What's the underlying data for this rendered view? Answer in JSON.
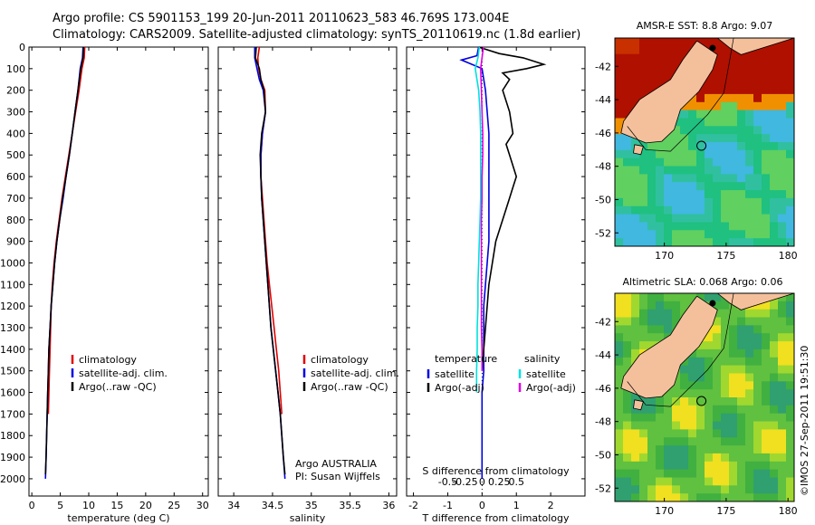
{
  "header": {
    "line1": "Argo profile: CS 5901153_199 20-Jun-2011 20110623_583 46.769S 173.004E",
    "line2": "Climatology: CARS2009. Satellite-adjusted climatology: synTS_20110619.nc (1.8d earlier)"
  },
  "credit": "©IMOS 27-Sep-2011 19:51:30",
  "colors": {
    "climatology": "#e00000",
    "satellite": "#0000e0",
    "argo": "#000000",
    "salinity_satellite": "#00e0e0",
    "salinity_argo": "#e000e0",
    "sst_warm": "#b01000",
    "sst_mid": "#f09000",
    "sst_cool": "#20c080",
    "sla_green": "#60c040",
    "land": "#f4c09c"
  },
  "chart_data": [
    {
      "type": "line",
      "name": "temperature_profile",
      "xlabel": "temperature (deg C)",
      "xlim": [
        -0.5,
        31
      ],
      "xticks": [
        0,
        5,
        10,
        15,
        20,
        25,
        30
      ],
      "ylim": [
        0,
        2080
      ],
      "yticks": [
        0,
        100,
        200,
        300,
        400,
        500,
        600,
        700,
        800,
        900,
        1000,
        1100,
        1200,
        1300,
        1400,
        1500,
        1600,
        1700,
        1800,
        1900,
        2000
      ],
      "legend": [
        "climatology",
        "satellite-adj. clim.",
        "Argo(..raw -QC)"
      ],
      "legend_position": "bottom-center",
      "series": [
        {
          "name": "climatology",
          "color": "#e00000",
          "depth": [
            0,
            50,
            100,
            200,
            300,
            400,
            500,
            600,
            700,
            800,
            900,
            1000,
            1100,
            1200,
            1300,
            1400,
            1500,
            1600,
            1700
          ],
          "values": [
            9.3,
            9.2,
            8.8,
            8.3,
            7.7,
            7.1,
            6.5,
            5.9,
            5.3,
            4.8,
            4.3,
            3.9,
            3.6,
            3.4,
            3.3,
            3.2,
            3.1,
            3.0,
            2.9
          ]
        },
        {
          "name": "satellite-adj. clim.",
          "color": "#0000e0",
          "depth": [
            0,
            50,
            100,
            200,
            300,
            400,
            500,
            600,
            700,
            800,
            900,
            1000,
            1100,
            1200,
            1300,
            1400,
            1500,
            1600,
            1700,
            1800,
            1900,
            2000
          ],
          "values": [
            9.0,
            8.9,
            8.5,
            8.1,
            7.6,
            7.1,
            6.6,
            6.0,
            5.5,
            4.9,
            4.4,
            4.0,
            3.7,
            3.4,
            3.2,
            3.0,
            2.9,
            2.8,
            2.7,
            2.6,
            2.5,
            2.4
          ]
        },
        {
          "name": "Argo(..raw -QC)",
          "color": "#000000",
          "depth": [
            0,
            50,
            100,
            200,
            300,
            400,
            500,
            600,
            700,
            800,
            900,
            1000,
            1100,
            1200,
            1300,
            1400,
            1500,
            1600,
            1700,
            1800,
            1900,
            1980
          ],
          "values": [
            9.1,
            9.0,
            8.6,
            8.1,
            7.6,
            7.1,
            6.6,
            6.0,
            5.4,
            4.9,
            4.4,
            4.0,
            3.7,
            3.4,
            3.2,
            3.0,
            2.9,
            2.8,
            2.7,
            2.6,
            2.5,
            2.4
          ]
        }
      ]
    },
    {
      "type": "line",
      "name": "salinity_profile",
      "xlabel": "salinity",
      "xlim": [
        33.8,
        36.1
      ],
      "xticks": [
        34,
        34.5,
        35,
        35.5,
        36
      ],
      "ylim": [
        0,
        2080
      ],
      "legend": [
        "climatology",
        "satellite-adj. clim.",
        "Argo(..raw -QC)"
      ],
      "legend_position": "bottom-right",
      "annotation": [
        "Argo AUSTRALIA",
        "PI: Susan Wijffels"
      ],
      "series": [
        {
          "name": "climatology",
          "color": "#e00000",
          "depth": [
            0,
            50,
            100,
            150,
            200,
            300,
            400,
            500,
            600,
            700,
            800,
            900,
            1000,
            1100,
            1200,
            1300,
            1400,
            1500,
            1600,
            1700
          ],
          "values": [
            34.33,
            34.31,
            34.32,
            34.35,
            34.4,
            34.41,
            34.37,
            34.35,
            34.35,
            34.37,
            34.39,
            34.41,
            34.43,
            34.46,
            34.49,
            34.52,
            34.55,
            34.58,
            34.6,
            34.62
          ]
        },
        {
          "name": "satellite-adj. clim.",
          "color": "#0000e0",
          "depth": [
            0,
            50,
            100,
            150,
            200,
            300,
            400,
            500,
            600,
            700,
            800,
            900,
            1000,
            1100,
            1200,
            1300,
            1400,
            1500,
            1600,
            1700,
            1800,
            1900,
            2000
          ],
          "values": [
            34.27,
            34.27,
            34.3,
            34.33,
            34.38,
            34.41,
            34.37,
            34.35,
            34.35,
            34.36,
            34.38,
            34.4,
            34.42,
            34.44,
            34.46,
            34.48,
            34.51,
            34.54,
            34.57,
            34.6,
            34.62,
            34.64,
            34.66
          ]
        },
        {
          "name": "Argo(..raw -QC)",
          "color": "#000000",
          "depth": [
            0,
            50,
            100,
            150,
            200,
            300,
            400,
            500,
            600,
            700,
            800,
            900,
            1000,
            1100,
            1200,
            1300,
            1400,
            1500,
            1600,
            1700,
            1800,
            1900,
            1980
          ],
          "values": [
            34.29,
            34.28,
            34.33,
            34.35,
            34.39,
            34.41,
            34.36,
            34.34,
            34.35,
            34.36,
            34.38,
            34.4,
            34.42,
            34.44,
            34.46,
            34.48,
            34.51,
            34.54,
            34.57,
            34.6,
            34.62,
            34.64,
            34.66
          ]
        }
      ]
    },
    {
      "type": "line",
      "name": "difference_profile",
      "xlabel": "T difference from climatology",
      "xlabel_top": "S difference from climatology",
      "xlim": [
        -2.2,
        3.0
      ],
      "xticks": [
        -2,
        -1,
        0,
        1,
        2
      ],
      "s_ticks": [
        -0.5,
        -0.25,
        0,
        0.25,
        0.5
      ],
      "s_tick_labels": [
        "-0.5",
        "-0.25",
        "0",
        "0.25",
        "0.5"
      ],
      "ylim": [
        0,
        2080
      ],
      "legend_groups": [
        {
          "title": "temperature",
          "entries": [
            "satellite",
            "Argo(-adj)"
          ]
        },
        {
          "title": "salinity",
          "entries": [
            "satellite",
            "Argo(-adj)"
          ]
        }
      ],
      "series": [
        {
          "name": "temperature satellite",
          "color": "#0000e0",
          "depth": [
            0,
            40,
            60,
            100,
            200,
            300,
            400,
            500,
            600,
            700,
            800,
            900,
            1000,
            1100,
            1200,
            1300,
            1400,
            1500,
            1600,
            1700,
            1800,
            1900,
            2000
          ],
          "values": [
            -0.1,
            -0.15,
            -0.6,
            0.0,
            0.1,
            0.15,
            0.2,
            0.2,
            0.2,
            0.2,
            0.2,
            0.2,
            0.15,
            0.1,
            0.05,
            0.05,
            0.05,
            0.05,
            0.0,
            0.0,
            0.0,
            0.0,
            0.0
          ]
        },
        {
          "name": "temperature Argo(-adj)",
          "color": "#000000",
          "depth": [
            0,
            30,
            50,
            80,
            100,
            120,
            150,
            200,
            300,
            400,
            450,
            500,
            600,
            650,
            700,
            800,
            900,
            1000,
            1100,
            1200,
            1300,
            1400,
            1500
          ],
          "values": [
            -0.1,
            0.5,
            1.2,
            1.8,
            1.3,
            0.6,
            0.8,
            0.6,
            0.8,
            0.9,
            0.7,
            0.8,
            1.0,
            0.9,
            0.8,
            0.6,
            0.4,
            0.3,
            0.2,
            0.15,
            0.1,
            0.05,
            0.0
          ]
        },
        {
          "name": "salinity satellite",
          "color": "#00e0e0",
          "depth": [
            0,
            50,
            100,
            200,
            300,
            400,
            500,
            600,
            700,
            800,
            900,
            1000,
            1100,
            1200,
            1300,
            1400,
            1500,
            1600
          ],
          "values": [
            -0.04,
            -0.06,
            -0.1,
            -0.05,
            -0.03,
            -0.02,
            -0.02,
            -0.02,
            -0.02,
            -0.03,
            -0.04,
            -0.05,
            -0.06,
            -0.06,
            -0.07,
            -0.07,
            -0.08,
            -0.08
          ]
        },
        {
          "name": "salinity Argo(-adj)",
          "color": "#e000e0",
          "depth": [
            0,
            50,
            100,
            200,
            300,
            400,
            500,
            600,
            700,
            800,
            900,
            1000,
            1100,
            1200,
            1300,
            1400,
            1500
          ],
          "values": [
            0.02,
            0.0,
            -0.02,
            -0.01,
            0.0,
            0.01,
            0.01,
            0.0,
            0.0,
            -0.01,
            -0.01,
            -0.01,
            -0.01,
            -0.01,
            -0.01,
            0.0,
            0.0
          ]
        }
      ]
    },
    {
      "type": "heatmap",
      "name": "sst_map",
      "title": "AMSR-E SST: 8.8 Argo: 9.07",
      "xlim": [
        166,
        180.5
      ],
      "ylim": [
        -52.8,
        -40.3
      ],
      "xticks": [
        170,
        175,
        180
      ],
      "yticks": [
        -42,
        -44,
        -46,
        -48,
        -50,
        -52
      ],
      "yticklabels": [
        "-42",
        "-44",
        "-46",
        "-48",
        "-50",
        "-52"
      ],
      "float_position": {
        "lon": 173.0,
        "lat": -46.77
      }
    },
    {
      "type": "heatmap",
      "name": "sla_map",
      "title": "Altimetric SLA: 0.068 Argo: 0.06",
      "xlim": [
        166,
        180.5
      ],
      "ylim": [
        -52.8,
        -40.3
      ],
      "xticks": [
        170,
        175,
        180
      ],
      "yticks": [
        -42,
        -44,
        -46,
        -48,
        -50,
        -52
      ],
      "yticklabels": [
        "-42",
        "-44",
        "-46",
        "-48",
        "-50",
        "-52"
      ],
      "float_position": {
        "lon": 173.0,
        "lat": -46.77
      }
    }
  ]
}
